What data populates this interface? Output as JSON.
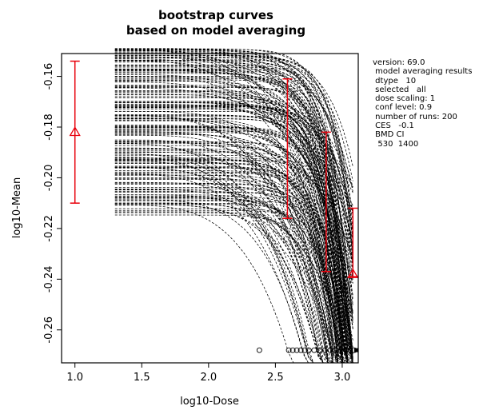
{
  "chart_data": {
    "type": "line",
    "title": [
      "bootstrap curves",
      "based on model averaging"
    ],
    "xlabel": "log10-Dose",
    "ylabel": "log10-Mean",
    "xlim": [
      0.9,
      3.12
    ],
    "ylim": [
      -0.273,
      -0.151
    ],
    "xticks": [
      1.0,
      1.5,
      2.0,
      2.5,
      3.0
    ],
    "xtick_labels": [
      "1.0",
      "1.5",
      "2.0",
      "2.5",
      "3.0"
    ],
    "yticks": [
      -0.16,
      -0.18,
      -0.2,
      -0.22,
      -0.24,
      -0.26
    ],
    "ytick_labels": [
      "-0.16",
      "-0.18",
      "-0.20",
      "-0.22",
      "-0.24",
      "-0.26"
    ],
    "grid": false,
    "bootstrap_curves": {
      "count": 200,
      "x_start": 1.3,
      "x_end": 3.08,
      "y_start_range": [
        -0.215,
        -0.149
      ],
      "line_color": "#000000"
    },
    "confidence_intervals": [
      {
        "x": 1.0,
        "low": -0.21,
        "high": -0.154,
        "point": -0.182,
        "marker": "triangle"
      },
      {
        "x": 2.59,
        "low": -0.216,
        "high": -0.161,
        "point": null,
        "marker": null
      },
      {
        "x": 2.88,
        "low": -0.237,
        "high": -0.182,
        "point": null,
        "marker": null
      },
      {
        "x": 3.08,
        "low": -0.239,
        "high": -0.212,
        "point": -0.238,
        "marker": "triangle"
      }
    ],
    "ci_color": "#e8000b",
    "bmd_points": {
      "y": -0.268,
      "x": [
        2.38,
        2.6,
        2.63,
        2.66,
        2.69,
        2.72,
        2.75,
        2.79,
        2.83,
        2.87,
        2.91,
        2.95,
        2.99,
        3.03,
        3.06,
        3.09
      ],
      "tail_x": [
        3.09,
        3.12
      ]
    },
    "annotations": [
      "version: 69.0",
      " model averaging results",
      " dtype   10",
      " selected   all",
      " dose scaling: 1",
      " conf level: 0.9",
      " number of runs: 200",
      " CES   -0.1",
      " BMD CI",
      "  530  1400"
    ]
  }
}
